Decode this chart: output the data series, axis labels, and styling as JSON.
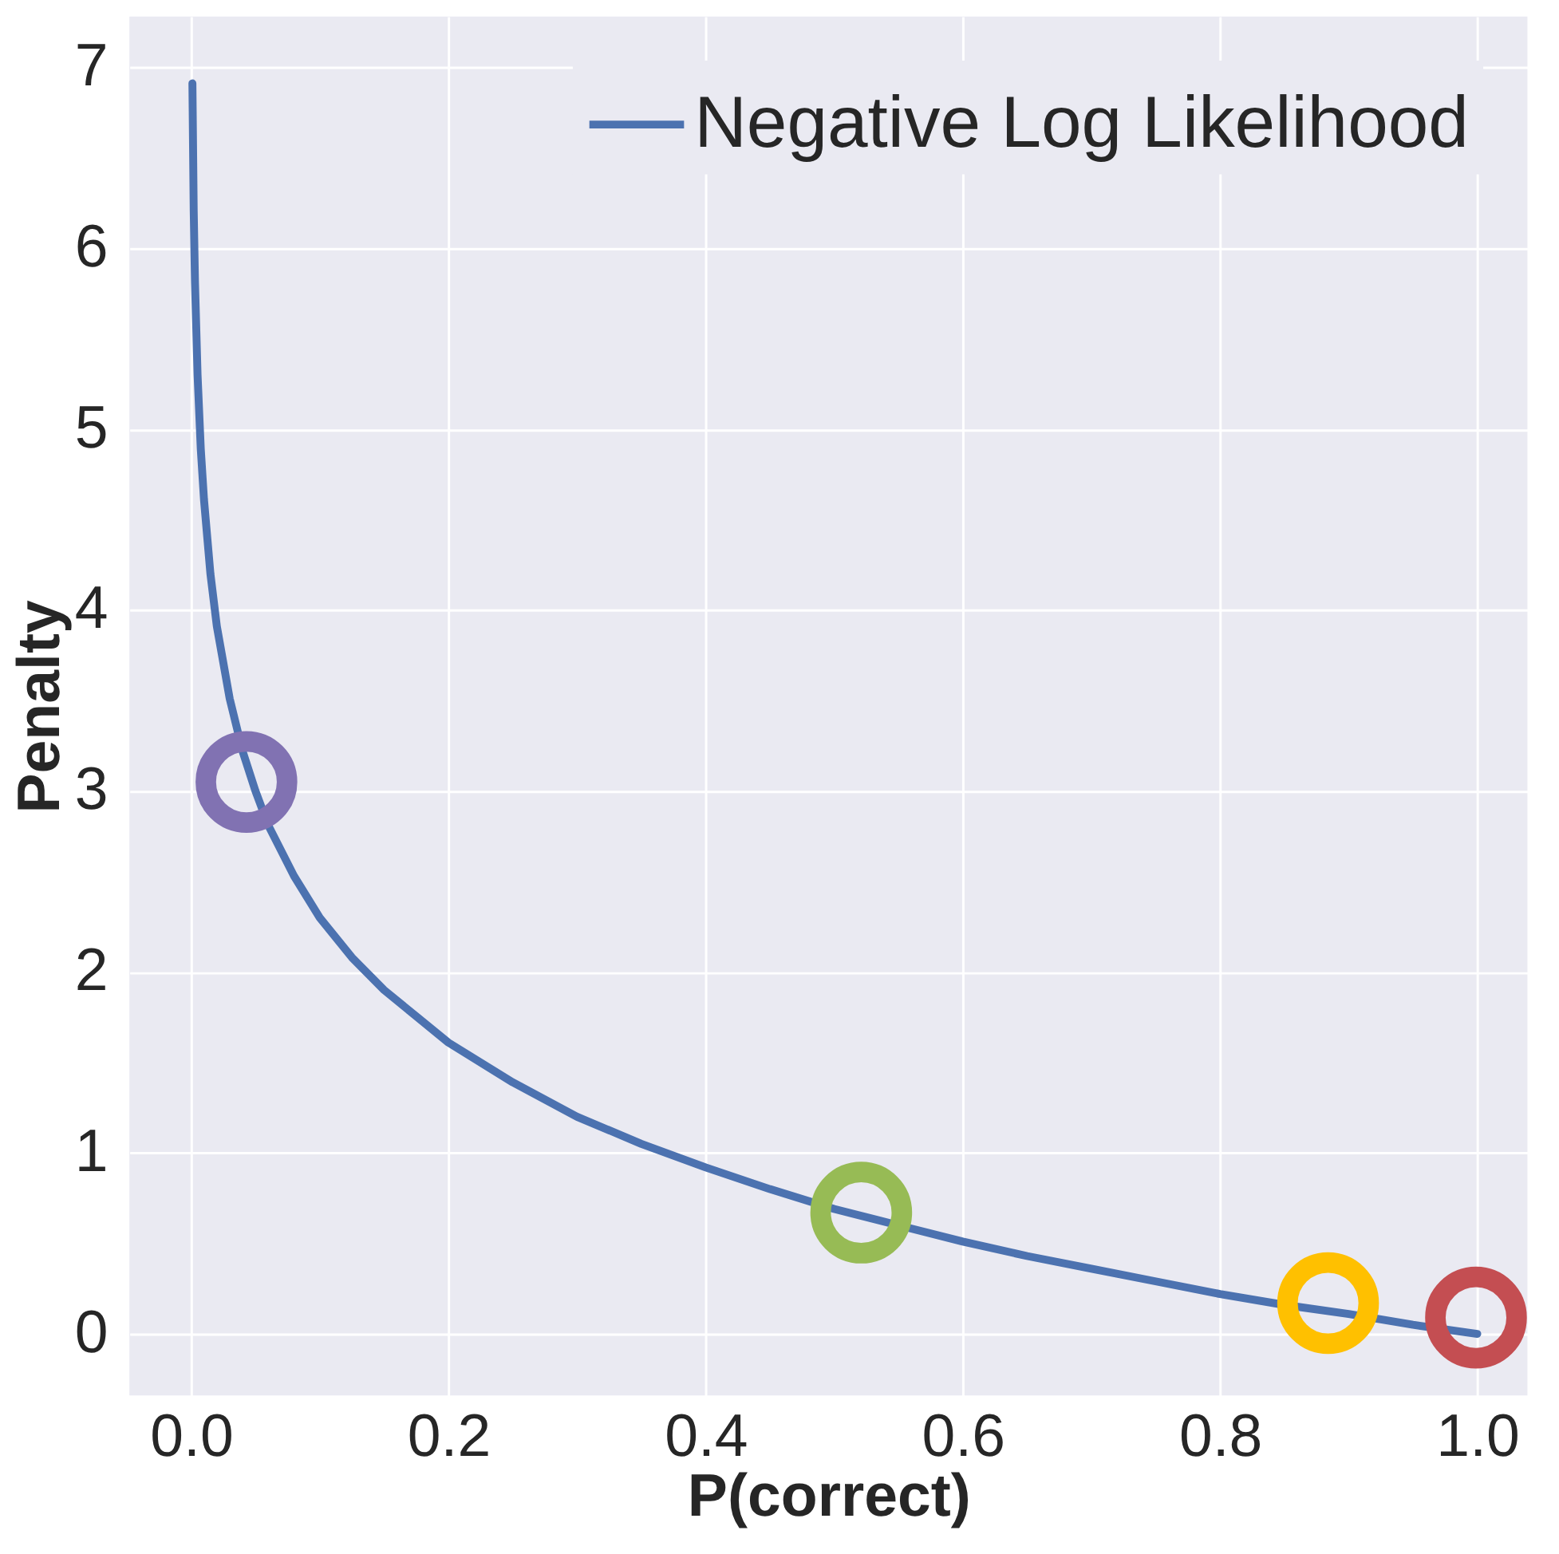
{
  "chart_data": {
    "type": "line",
    "xlabel": "P(correct)",
    "ylabel": "Penalty",
    "xlim": [
      -0.048,
      1.039
    ],
    "ylim": [
      -0.34,
      7.28
    ],
    "xticks": [
      {
        "value": 0,
        "label": "0.0"
      },
      {
        "value": 0.2,
        "label": "0.2"
      },
      {
        "value": 0.4,
        "label": "0.4"
      },
      {
        "value": 0.6,
        "label": "0.6"
      },
      {
        "value": 0.8,
        "label": "0.8"
      },
      {
        "value": 1,
        "label": "1.0"
      }
    ],
    "yticks": [
      0,
      1,
      2,
      3,
      4,
      5,
      6,
      7
    ],
    "grid": true,
    "legend": "top right",
    "line_style": "solid",
    "series": [
      {
        "name": "Negative Log Likelihood",
        "color": "#4c72b0",
        "marker": "none",
        "x": [
          0.001,
          0.002,
          0.003,
          0.005,
          0.0075,
          0.01,
          0.015,
          0.02,
          0.03,
          0.04,
          0.05,
          0.06,
          0.08,
          0.1,
          0.125,
          0.15,
          0.2,
          0.25,
          0.3,
          0.35,
          0.4,
          0.45,
          0.5,
          0.55,
          0.6,
          0.65,
          0.7,
          0.75,
          0.8,
          0.85,
          0.9,
          0.95,
          1.0
        ],
        "values": [
          6.91,
          6.21,
          5.81,
          5.3,
          4.89,
          4.61,
          4.2,
          3.91,
          3.51,
          3.22,
          3.0,
          2.81,
          2.53,
          2.3,
          2.08,
          1.9,
          1.61,
          1.39,
          1.2,
          1.05,
          0.92,
          0.8,
          0.69,
          0.6,
          0.51,
          0.43,
          0.36,
          0.29,
          0.22,
          0.16,
          0.11,
          0.05,
          0.0
        ]
      },
      {
        "type": "scatter",
        "marker": "circle",
        "x": [
          0.043,
          0.521,
          0.884,
          0.999
        ],
        "values": [
          3.05,
          0.67,
          0.17,
          0.09
        ],
        "colors": [
          "#8172b2",
          "#97bb55",
          "#ffc000",
          "#c44e52"
        ]
      }
    ]
  }
}
